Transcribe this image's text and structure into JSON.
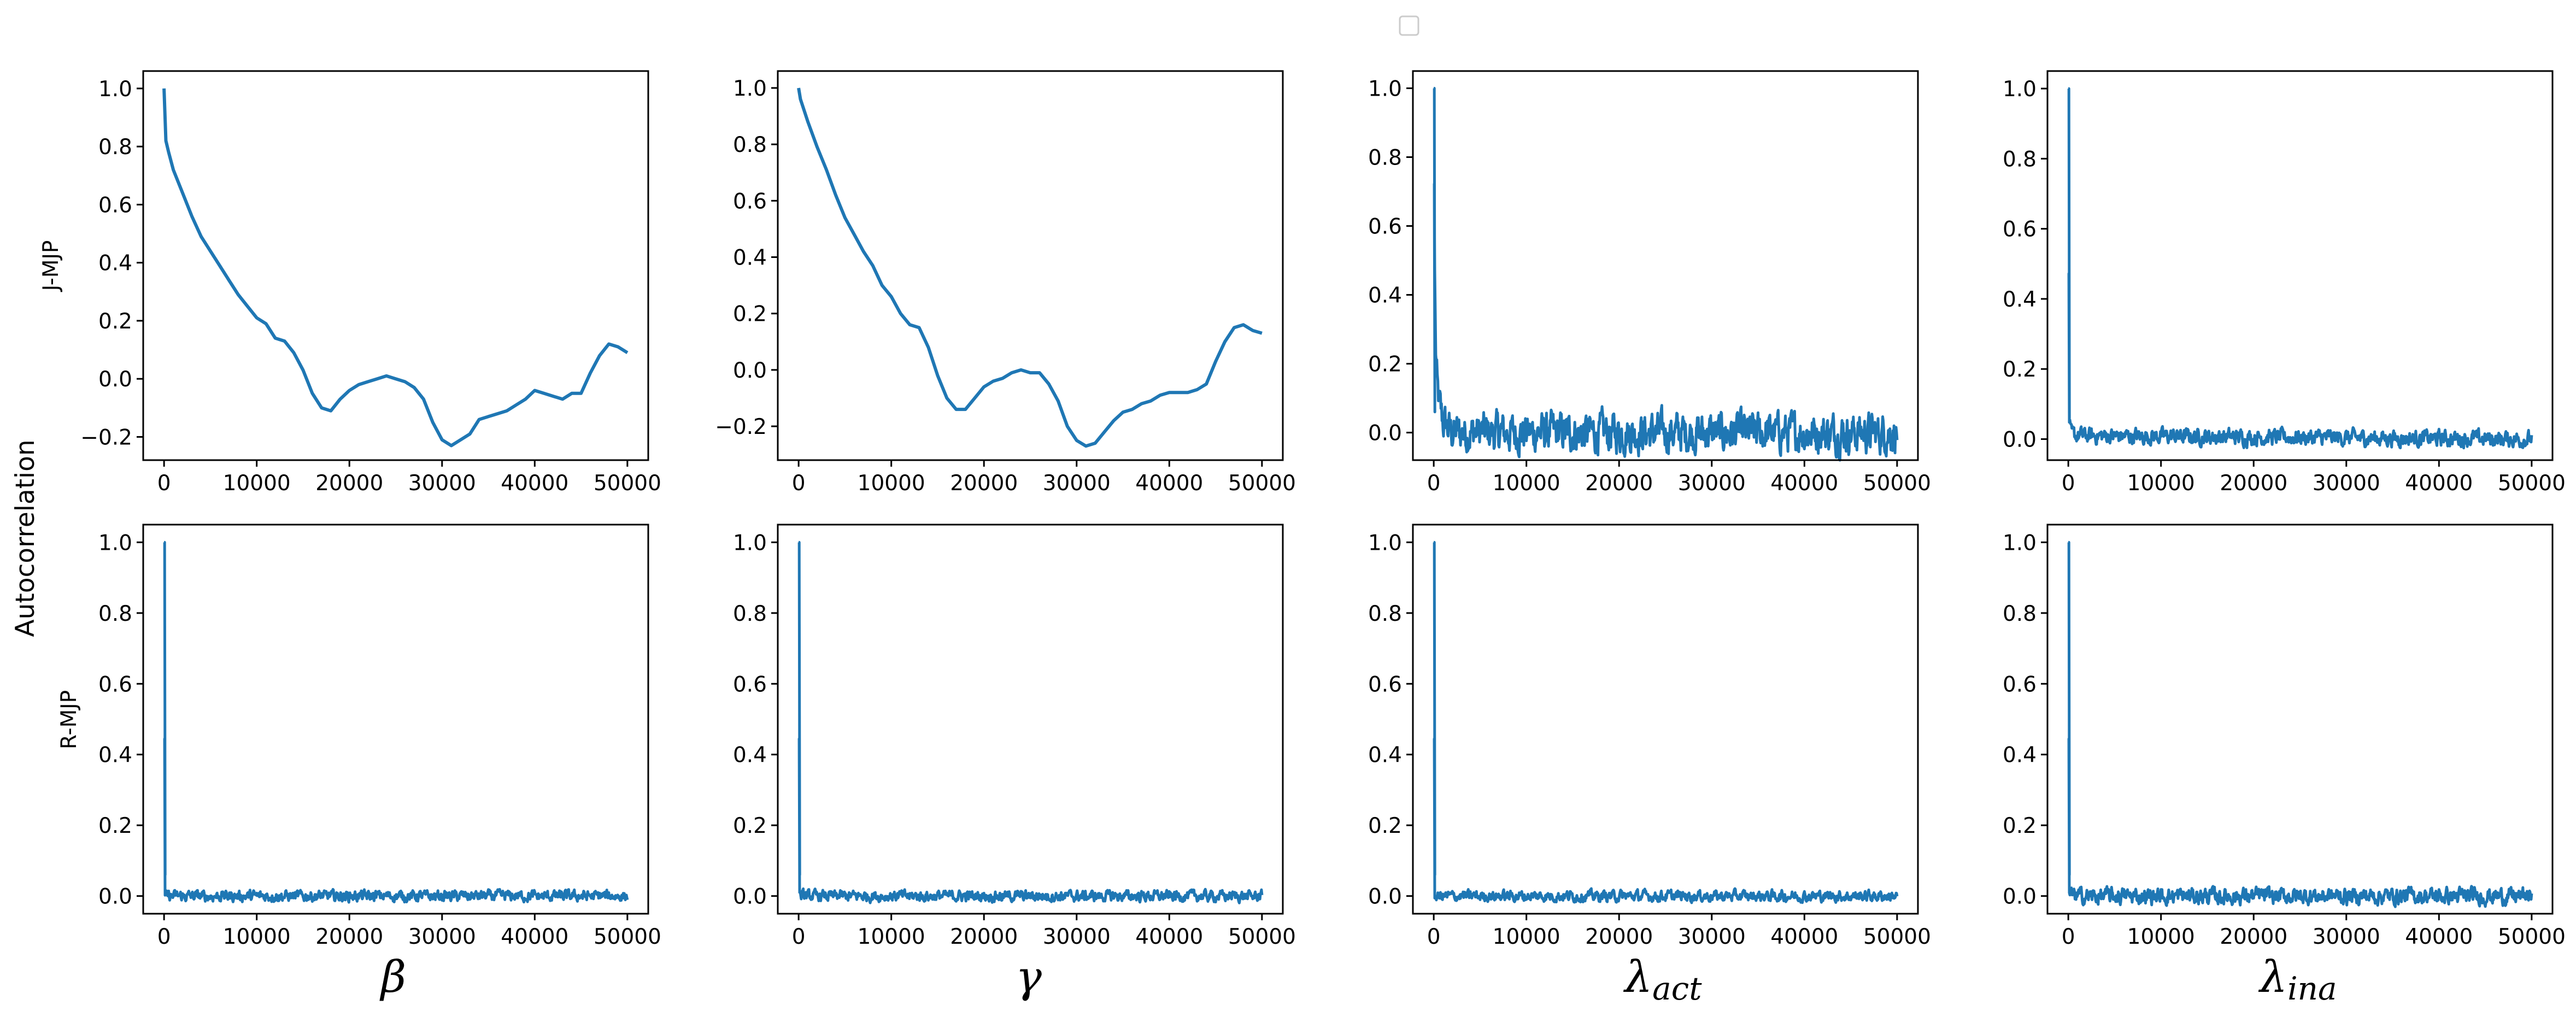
{
  "figure": {
    "ylabel": "Autocorrelation",
    "row_labels": [
      "J-MJP",
      "R-MJP"
    ],
    "col_labels": [
      {
        "base": "β",
        "sub": ""
      },
      {
        "base": "γ",
        "sub": ""
      },
      {
        "base": "λ",
        "sub": "act"
      },
      {
        "base": "λ",
        "sub": "ina"
      }
    ],
    "legend": "empty legend box at top-center",
    "line_color": "#1f77b4"
  },
  "chart_data": [
    {
      "type": "line",
      "row": "J-MJP",
      "col": "β",
      "xlim": [
        0,
        50000
      ],
      "ylim": [
        -0.28,
        1.06
      ],
      "yticks": [
        -0.2,
        0.0,
        0.2,
        0.4,
        0.6,
        0.8,
        1.0
      ],
      "xticks": [
        0,
        10000,
        20000,
        30000,
        40000,
        50000
      ],
      "series": [
        {
          "x": [
            0,
            200,
            500,
            1000,
            2000,
            3000,
            4000,
            5000,
            6000,
            7000,
            8000,
            9000,
            10000,
            11000,
            12000,
            13000,
            14000,
            15000,
            16000,
            17000,
            18000,
            19000,
            20000,
            21000,
            22000,
            23000,
            24000,
            25000,
            26000,
            27000,
            28000,
            29000,
            30000,
            31000,
            32000,
            33000,
            34000,
            35000,
            36000,
            37000,
            38000,
            39000,
            40000,
            41000,
            42000,
            43000,
            44000,
            45000,
            46000,
            47000,
            48000,
            49000,
            50000
          ],
          "y": [
            1.0,
            0.82,
            0.78,
            0.72,
            0.64,
            0.56,
            0.49,
            0.44,
            0.39,
            0.34,
            0.29,
            0.25,
            0.21,
            0.19,
            0.14,
            0.13,
            0.09,
            0.03,
            -0.05,
            -0.1,
            -0.11,
            -0.07,
            -0.04,
            -0.02,
            -0.01,
            0.0,
            0.01,
            0.0,
            -0.01,
            -0.03,
            -0.07,
            -0.15,
            -0.21,
            -0.23,
            -0.21,
            -0.19,
            -0.14,
            -0.13,
            -0.12,
            -0.11,
            -0.09,
            -0.07,
            -0.04,
            -0.05,
            -0.06,
            -0.07,
            -0.05,
            -0.05,
            0.02,
            0.08,
            0.12,
            0.11,
            0.09
          ]
        }
      ]
    },
    {
      "type": "line",
      "row": "J-MJP",
      "col": "γ",
      "xlim": [
        0,
        50000
      ],
      "ylim": [
        -0.32,
        1.06
      ],
      "yticks": [
        -0.2,
        0.0,
        0.2,
        0.4,
        0.6,
        0.8,
        1.0
      ],
      "xticks": [
        0,
        10000,
        20000,
        30000,
        40000,
        50000
      ],
      "series": [
        {
          "x": [
            0,
            200,
            500,
            1000,
            2000,
            3000,
            4000,
            5000,
            6000,
            7000,
            8000,
            9000,
            10000,
            11000,
            12000,
            13000,
            14000,
            15000,
            16000,
            17000,
            18000,
            19000,
            20000,
            21000,
            22000,
            23000,
            24000,
            25000,
            26000,
            27000,
            28000,
            29000,
            30000,
            31000,
            32000,
            33000,
            34000,
            35000,
            36000,
            37000,
            38000,
            39000,
            40000,
            41000,
            42000,
            43000,
            44000,
            45000,
            46000,
            47000,
            48000,
            49000,
            50000
          ],
          "y": [
            1.0,
            0.96,
            0.93,
            0.88,
            0.79,
            0.71,
            0.62,
            0.54,
            0.48,
            0.42,
            0.37,
            0.3,
            0.26,
            0.2,
            0.16,
            0.15,
            0.08,
            -0.02,
            -0.1,
            -0.14,
            -0.14,
            -0.1,
            -0.06,
            -0.04,
            -0.03,
            -0.01,
            0.0,
            -0.01,
            -0.01,
            -0.05,
            -0.11,
            -0.2,
            -0.25,
            -0.27,
            -0.26,
            -0.22,
            -0.18,
            -0.15,
            -0.14,
            -0.12,
            -0.11,
            -0.09,
            -0.08,
            -0.08,
            -0.08,
            -0.07,
            -0.05,
            0.03,
            0.1,
            0.15,
            0.16,
            0.14,
            0.13
          ]
        }
      ]
    },
    {
      "type": "line",
      "row": "J-MJP",
      "col": "λ_act",
      "xlim": [
        0,
        50000
      ],
      "ylim": [
        -0.08,
        1.05
      ],
      "yticks": [
        0.0,
        0.2,
        0.4,
        0.6,
        0.8,
        1.0
      ],
      "xticks": [
        0,
        10000,
        20000,
        30000,
        40000,
        50000
      ],
      "series": [
        {
          "x": [
            0,
            100,
            200,
            400,
            600,
            1000,
            2000,
            50000
          ],
          "y": [
            1.0,
            0.5,
            0.25,
            0.12,
            0.08,
            0.03,
            0.0,
            0.0
          ],
          "noise": "fluctuates between about -0.08 and 0.07 after lag 2000"
        }
      ]
    },
    {
      "type": "line",
      "row": "J-MJP",
      "col": "λ_ina",
      "xlim": [
        0,
        50000
      ],
      "ylim": [
        -0.06,
        1.05
      ],
      "yticks": [
        0.0,
        0.2,
        0.4,
        0.6,
        0.8,
        1.0
      ],
      "xticks": [
        0,
        10000,
        20000,
        30000,
        40000,
        50000
      ],
      "series": [
        {
          "x": [
            0,
            100,
            300,
            50000
          ],
          "y": [
            1.0,
            0.05,
            0.01,
            0.0
          ],
          "noise": "fluctuates between about -0.05 and 0.05"
        }
      ]
    },
    {
      "type": "line",
      "row": "R-MJP",
      "col": "β",
      "xlim": [
        0,
        50000
      ],
      "ylim": [
        -0.05,
        1.05
      ],
      "yticks": [
        0.0,
        0.2,
        0.4,
        0.6,
        0.8,
        1.0
      ],
      "xticks": [
        0,
        10000,
        20000,
        30000,
        40000,
        50000
      ],
      "series": [
        {
          "x": [
            0,
            100,
            50000
          ],
          "y": [
            1.0,
            0.0,
            0.0
          ],
          "noise": "fluctuates between about -0.03 and 0.03"
        }
      ]
    },
    {
      "type": "line",
      "row": "R-MJP",
      "col": "γ",
      "xlim": [
        0,
        50000
      ],
      "ylim": [
        -0.05,
        1.05
      ],
      "yticks": [
        0.0,
        0.2,
        0.4,
        0.6,
        0.8,
        1.0
      ],
      "xticks": [
        0,
        10000,
        20000,
        30000,
        40000,
        50000
      ],
      "series": [
        {
          "x": [
            0,
            100,
            50000
          ],
          "y": [
            1.0,
            0.0,
            0.0
          ],
          "noise": "fluctuates between about -0.03 and 0.03"
        }
      ]
    },
    {
      "type": "line",
      "row": "R-MJP",
      "col": "λ_act",
      "xlim": [
        0,
        50000
      ],
      "ylim": [
        -0.05,
        1.05
      ],
      "yticks": [
        0.0,
        0.2,
        0.4,
        0.6,
        0.8,
        1.0
      ],
      "xticks": [
        0,
        10000,
        20000,
        30000,
        40000,
        50000
      ],
      "series": [
        {
          "x": [
            0,
            100,
            50000
          ],
          "y": [
            1.0,
            0.0,
            0.0
          ],
          "noise": "fluctuates between about -0.03 and 0.03"
        }
      ]
    },
    {
      "type": "line",
      "row": "R-MJP",
      "col": "λ_ina",
      "xlim": [
        0,
        50000
      ],
      "ylim": [
        -0.05,
        1.05
      ],
      "yticks": [
        0.0,
        0.2,
        0.4,
        0.6,
        0.8,
        1.0
      ],
      "xticks": [
        0,
        10000,
        20000,
        30000,
        40000,
        50000
      ],
      "series": [
        {
          "x": [
            0,
            100,
            50000
          ],
          "y": [
            1.0,
            0.0,
            0.0
          ],
          "noise": "fluctuates between about -0.04 and 0.04"
        }
      ]
    }
  ]
}
